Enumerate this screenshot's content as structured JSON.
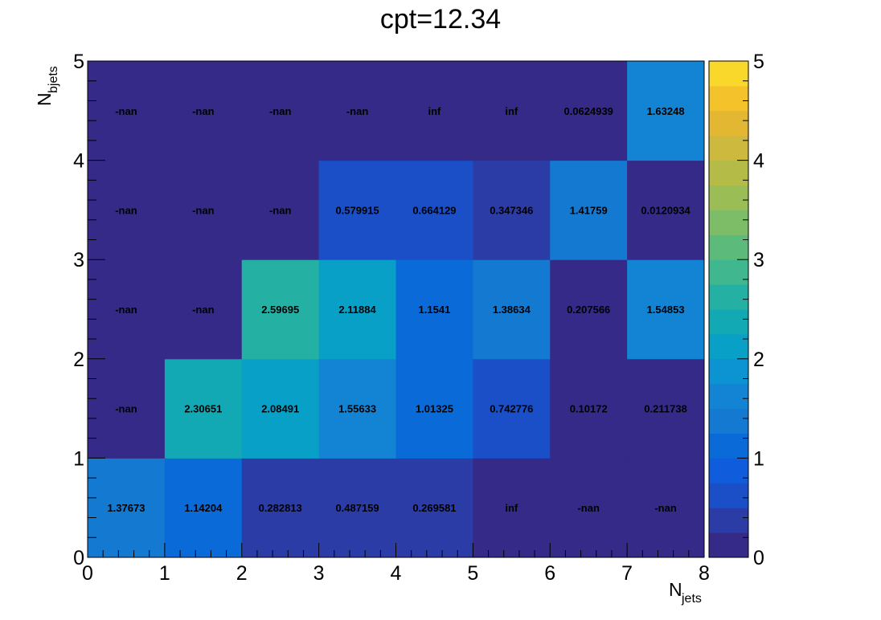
{
  "chart_data": {
    "type": "heatmap",
    "title": "cpt=12.34",
    "xlabel": {
      "main": "N",
      "sub": "jets"
    },
    "ylabel": {
      "main": "N",
      "sub": "bjets"
    },
    "xlim": [
      0,
      8
    ],
    "ylim": [
      0,
      5
    ],
    "x_tick_labels": [
      "0",
      "1",
      "2",
      "3",
      "4",
      "5",
      "6",
      "7",
      "8"
    ],
    "y_tick_labels": [
      "0",
      "1",
      "2",
      "3",
      "4",
      "5"
    ],
    "color_scale": {
      "min": 0,
      "max": 5,
      "tick_labels": [
        "0",
        "1",
        "2",
        "3",
        "4",
        "5"
      ],
      "palette": "viridis-like"
    },
    "rows": [
      {
        "y_bin": [
          0,
          1
        ],
        "labels": [
          "1.37673",
          "1.14204",
          "0.282813",
          "0.487159",
          "0.269581",
          "inf",
          "-nan",
          "-nan"
        ]
      },
      {
        "y_bin": [
          1,
          2
        ],
        "labels": [
          "-nan",
          "2.30651",
          "2.08491",
          "1.55633",
          "1.01325",
          "0.742776",
          "0.10172",
          "0.211738"
        ]
      },
      {
        "y_bin": [
          2,
          3
        ],
        "labels": [
          "-nan",
          "-nan",
          "2.59695",
          "2.11884",
          "1.1541",
          "1.38634",
          "0.207566",
          "1.54853"
        ]
      },
      {
        "y_bin": [
          3,
          4
        ],
        "labels": [
          "-nan",
          "-nan",
          "-nan",
          "0.579915",
          "0.664129",
          "0.347346",
          "1.41759",
          "0.0120934"
        ]
      },
      {
        "y_bin": [
          4,
          5
        ],
        "labels": [
          "-nan",
          "-nan",
          "-nan",
          "-nan",
          "inf",
          "inf",
          "0.0624939",
          "1.63248"
        ]
      }
    ]
  }
}
